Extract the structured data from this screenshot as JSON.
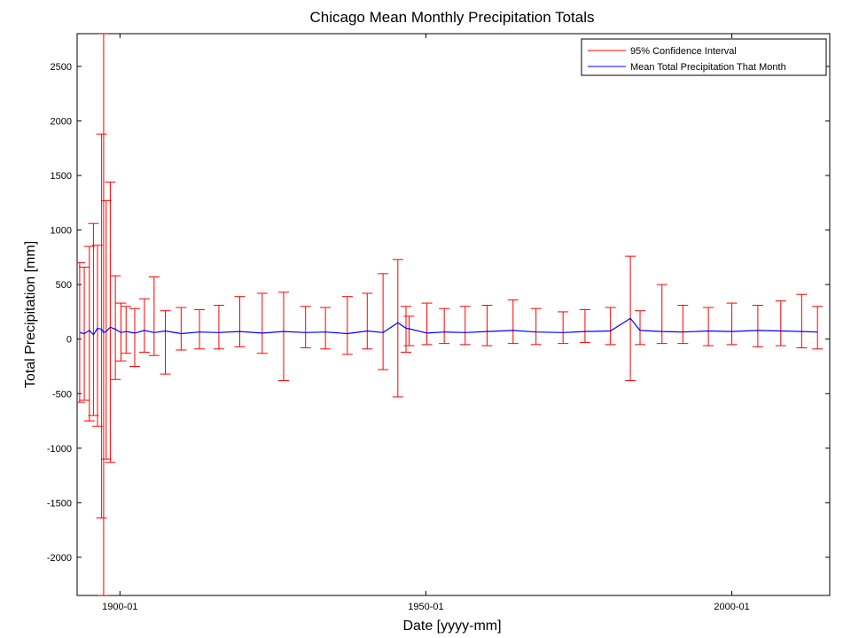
{
  "chart_data": {
    "type": "line",
    "title": "Chicago Mean Monthly Precipitation Totals",
    "xlabel": "Date [yyyy-mm]",
    "ylabel": "Total Precipitation [mm]",
    "xlim": [
      "1893-01",
      "2016-01"
    ],
    "ylim": [
      -2350,
      2800
    ],
    "x_ticks": [
      "1900-01",
      "1950-01",
      "2000-01"
    ],
    "y_ticks": [
      -2000,
      -1500,
      -1000,
      -500,
      0,
      500,
      1000,
      1500,
      2000,
      2500
    ],
    "grid": false,
    "legend_position": "top-right",
    "series": [
      {
        "name": "95% Confidence Interval",
        "color": "#ff0000",
        "style": "errorbar",
        "x": [
          "1893-06",
          "1894-03",
          "1895-01",
          "1895-09",
          "1896-05",
          "1897-01",
          "1897-05",
          "1897-10",
          "1898-06",
          "1899-04",
          "1900-03",
          "1901-01",
          "1902-06",
          "1904-01",
          "1905-08",
          "1907-06",
          "1910-01",
          "1913-01",
          "1916-03",
          "1919-08",
          "1923-04",
          "1926-10",
          "1930-05",
          "1933-08",
          "1937-03",
          "1940-06",
          "1943-01",
          "1945-06",
          "1946-10",
          "1947-04",
          "1950-03",
          "1953-01",
          "1956-06",
          "1960-01",
          "1964-04",
          "1968-01",
          "1972-06",
          "1976-01",
          "1980-03",
          "1983-06",
          "1985-01",
          "1988-08",
          "1992-01",
          "1996-03",
          "2000-01",
          "2004-04",
          "2008-01",
          "2011-06",
          "2014-01"
        ],
        "mean": [
          60,
          50,
          80,
          40,
          100,
          90,
          60,
          70,
          110,
          90,
          60,
          70,
          55,
          80,
          60,
          75,
          50,
          65,
          60,
          70,
          55,
          70,
          60,
          65,
          50,
          75,
          60,
          150,
          100,
          95,
          55,
          65,
          60,
          70,
          80,
          65,
          60,
          70,
          75,
          190,
          80,
          70,
          65,
          75,
          70,
          80,
          75,
          70,
          65
        ],
        "lower": [
          -580,
          -560,
          -750,
          -700,
          -800,
          -1640,
          -2350,
          -1100,
          -1130,
          -370,
          -200,
          -130,
          -250,
          -120,
          -150,
          -320,
          -100,
          -90,
          -90,
          -70,
          -130,
          -380,
          -80,
          -90,
          -140,
          -90,
          -280,
          -530,
          -120,
          -60,
          -50,
          -40,
          -50,
          -60,
          -40,
          -50,
          -40,
          -30,
          -50,
          -380,
          -50,
          -40,
          -40,
          -60,
          -50,
          -70,
          -60,
          -80,
          -90
        ],
        "upper": [
          700,
          660,
          850,
          1060,
          860,
          1880,
          2800,
          1270,
          1440,
          580,
          330,
          300,
          280,
          370,
          570,
          260,
          290,
          270,
          310,
          390,
          420,
          430,
          300,
          290,
          390,
          420,
          600,
          730,
          300,
          210,
          330,
          280,
          300,
          310,
          360,
          280,
          250,
          270,
          290,
          760,
          260,
          500,
          310,
          290,
          330,
          310,
          350,
          410,
          300
        ]
      },
      {
        "name": "Mean Total Precipitation That Month",
        "color": "#0000ff",
        "style": "line"
      }
    ]
  }
}
